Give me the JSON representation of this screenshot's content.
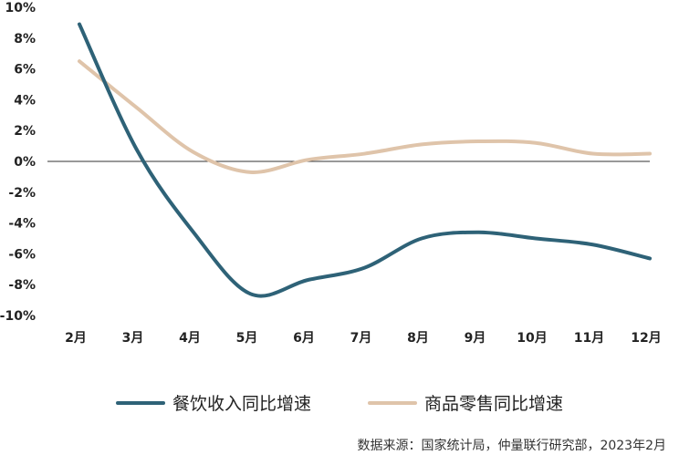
{
  "chart_data": {
    "type": "line",
    "title": "",
    "xlabel": "",
    "ylabel": "",
    "categories": [
      "2月",
      "3月",
      "4月",
      "5月",
      "6月",
      "7月",
      "8月",
      "9月",
      "10月",
      "11月",
      "12月"
    ],
    "ylim": [
      -10,
      10
    ],
    "yticks": [
      10,
      8,
      6,
      4,
      2,
      0,
      -2,
      -4,
      -6,
      -8,
      -10
    ],
    "ytick_labels": [
      "10%",
      "8%",
      "6%",
      "4%",
      "2%",
      "0%",
      "-2%",
      "-4%",
      "-6%",
      "-8%",
      "-10%"
    ],
    "grid": false,
    "smooth": true,
    "series": [
      {
        "name": "餐饮收入同比增速",
        "color": "#2e6277",
        "values": [
          8.9,
          0.8,
          -4.6,
          -8.6,
          -7.7,
          -6.9,
          -5.0,
          -4.6,
          -5.0,
          -5.4,
          -6.3
        ]
      },
      {
        "name": "商品零售同比增速",
        "color": "#dfc4aa",
        "values": [
          6.5,
          3.5,
          0.6,
          -0.7,
          0.1,
          0.5,
          1.1,
          1.3,
          1.2,
          0.5,
          0.5
        ]
      }
    ],
    "legend_position": "bottom"
  },
  "source": "数据来源：国家统计局，仲量联行研究部，2023年2月"
}
